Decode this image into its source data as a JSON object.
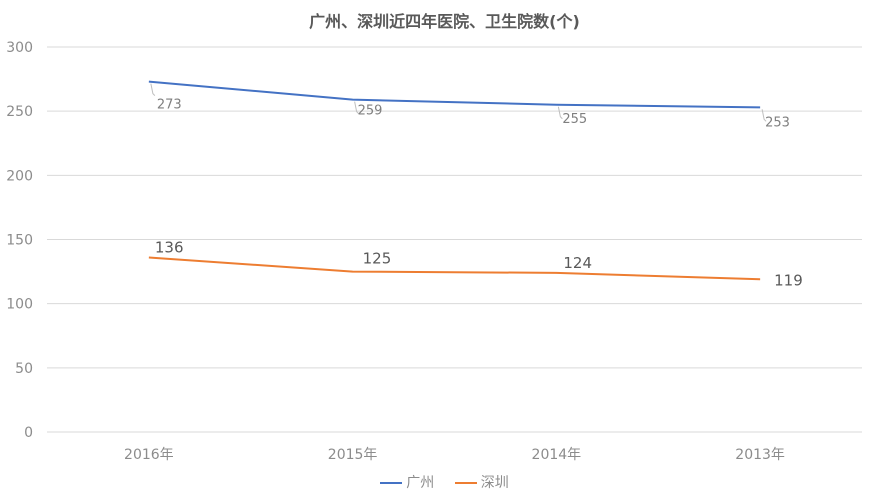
{
  "chart_data": {
    "type": "line",
    "title": "广州、深圳近四年医院、卫生院数(个)",
    "categories": [
      "2016年",
      "2015年",
      "2014年",
      "2013年"
    ],
    "series": [
      {
        "name": "广州",
        "values": [
          273,
          259,
          255,
          253
        ],
        "color": "#4472c4"
      },
      {
        "name": "深圳",
        "values": [
          136,
          125,
          124,
          119
        ],
        "color": "#ed7d31"
      }
    ],
    "ylim": [
      0,
      300
    ],
    "yticks": [
      0,
      50,
      100,
      150,
      200,
      250,
      300
    ],
    "grid": true,
    "legend": "bottom"
  }
}
